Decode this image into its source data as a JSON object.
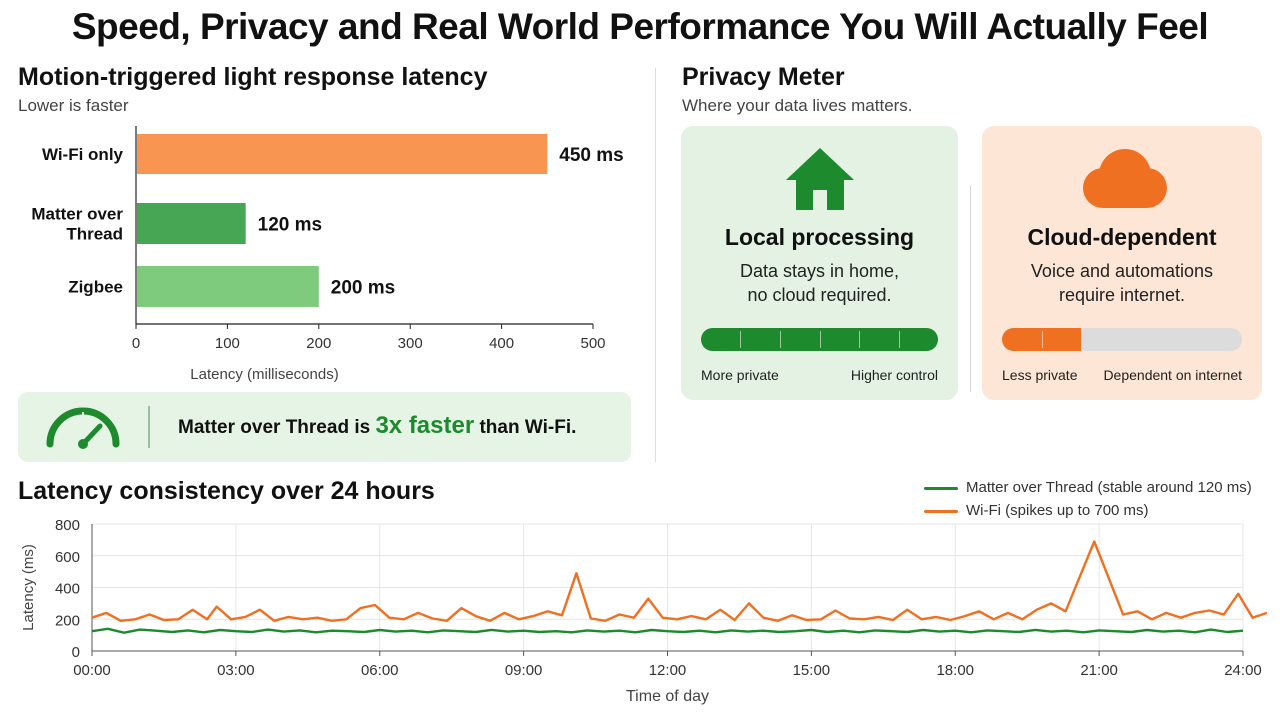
{
  "page": {
    "title": "Speed, Privacy and Real World Performance You Will Actually Feel"
  },
  "latency_section": {
    "title": "Motion-triggered light response latency",
    "subtitle": "Lower is faster"
  },
  "callout": {
    "prefix": "Matter over Thread is",
    "highlight": "3x faster",
    "suffix": "than Wi-Fi."
  },
  "privacy": {
    "title": "Privacy Meter",
    "subtitle": "Where your data lives matters.",
    "local": {
      "title": "Local processing",
      "line1": "Data stays in home,",
      "line2": "no cloud required.",
      "label_left": "More private",
      "label_right": "Higher control",
      "level": 1.0,
      "color": "#1e8a2e",
      "icon": "house-icon"
    },
    "cloud": {
      "title": "Cloud-dependent",
      "line1": "Voice and automations",
      "line2": "require internet.",
      "label_left": "Less private",
      "label_right": "Dependent on internet",
      "level": 0.33,
      "color": "#f07022",
      "icon": "cloud-icon"
    }
  },
  "consistency": {
    "title": "Latency consistency over 24 hours"
  },
  "chart_data": [
    {
      "type": "bar",
      "orientation": "horizontal",
      "categories": [
        "Wi-Fi only",
        "Matter over Thread",
        "Zigbee"
      ],
      "values": [
        450,
        120,
        200
      ],
      "value_labels": [
        "450 ms",
        "120 ms",
        "200 ms"
      ],
      "colors": [
        "#f89550",
        "#46a653",
        "#7ecb7e"
      ],
      "xlabel": "Latency (milliseconds)",
      "xlim": [
        0,
        500
      ],
      "xticks": [
        "0",
        "100",
        "200",
        "300",
        "400",
        "500"
      ],
      "grid": false
    },
    {
      "type": "line",
      "xlabel": "Time of day",
      "ylabel": "Latency (ms)",
      "ylim": [
        0,
        800
      ],
      "yticks": [
        "0",
        "200",
        "400",
        "600",
        "800"
      ],
      "xticks": [
        "00:00",
        "03:00",
        "06:00",
        "09:00",
        "12:00",
        "15:00",
        "18:00",
        "21:00",
        "24:00"
      ],
      "xlim": [
        0,
        24
      ],
      "grid": true,
      "legend": "top-right",
      "series": [
        {
          "name": "Matter over Thread (stable around 120 ms)",
          "color": "#1e8a2e",
          "points": [
            [
              0.0,
              125
            ],
            [
              0.33,
              140
            ],
            [
              0.67,
              115
            ],
            [
              1.0,
              135
            ],
            [
              1.33,
              128
            ],
            [
              1.67,
              120
            ],
            [
              2.0,
              130
            ],
            [
              2.33,
              118
            ],
            [
              2.67,
              132
            ],
            [
              3.0,
              125
            ],
            [
              3.33,
              120
            ],
            [
              3.67,
              135
            ],
            [
              4.0,
              122
            ],
            [
              4.33,
              130
            ],
            [
              4.67,
              118
            ],
            [
              5.0,
              128
            ],
            [
              5.33,
              125
            ],
            [
              5.67,
              120
            ],
            [
              6.0,
              132
            ],
            [
              6.33,
              122
            ],
            [
              6.67,
              128
            ],
            [
              7.0,
              118
            ],
            [
              7.33,
              130
            ],
            [
              7.67,
              125
            ],
            [
              8.0,
              120
            ],
            [
              8.33,
              133
            ],
            [
              8.67,
              122
            ],
            [
              9.0,
              128
            ],
            [
              9.33,
              120
            ],
            [
              9.67,
              125
            ],
            [
              10.0,
              118
            ],
            [
              10.33,
              130
            ],
            [
              10.67,
              122
            ],
            [
              11.0,
              128
            ],
            [
              11.33,
              118
            ],
            [
              11.67,
              132
            ],
            [
              12.0,
              125
            ],
            [
              12.33,
              120
            ],
            [
              12.67,
              128
            ],
            [
              13.0,
              118
            ],
            [
              13.33,
              130
            ],
            [
              13.67,
              122
            ],
            [
              14.0,
              128
            ],
            [
              14.33,
              120
            ],
            [
              14.67,
              125
            ],
            [
              15.0,
              132
            ],
            [
              15.33,
              120
            ],
            [
              15.67,
              128
            ],
            [
              16.0,
              118
            ],
            [
              16.33,
              130
            ],
            [
              16.67,
              125
            ],
            [
              17.0,
              120
            ],
            [
              17.33,
              132
            ],
            [
              17.67,
              122
            ],
            [
              18.0,
              128
            ],
            [
              18.33,
              118
            ],
            [
              18.67,
              130
            ],
            [
              19.0,
              125
            ],
            [
              19.33,
              120
            ],
            [
              19.67,
              133
            ],
            [
              20.0,
              122
            ],
            [
              20.33,
              128
            ],
            [
              20.67,
              118
            ],
            [
              21.0,
              130
            ],
            [
              21.33,
              125
            ],
            [
              21.67,
              120
            ],
            [
              22.0,
              132
            ],
            [
              22.33,
              122
            ],
            [
              22.67,
              128
            ],
            [
              23.0,
              118
            ],
            [
              23.33,
              135
            ],
            [
              23.67,
              120
            ],
            [
              24.0,
              128
            ]
          ]
        },
        {
          "name": "Wi-Fi (spikes up to 700 ms)",
          "color": "#f07022",
          "points": [
            [
              0.0,
              210
            ],
            [
              0.3,
              240
            ],
            [
              0.6,
              190
            ],
            [
              0.9,
              200
            ],
            [
              1.2,
              230
            ],
            [
              1.5,
              195
            ],
            [
              1.8,
              200
            ],
            [
              2.1,
              260
            ],
            [
              2.4,
              200
            ],
            [
              2.6,
              280
            ],
            [
              2.9,
              200
            ],
            [
              3.2,
              215
            ],
            [
              3.5,
              260
            ],
            [
              3.8,
              190
            ],
            [
              4.1,
              215
            ],
            [
              4.4,
              200
            ],
            [
              4.7,
              210
            ],
            [
              5.0,
              190
            ],
            [
              5.3,
              200
            ],
            [
              5.6,
              270
            ],
            [
              5.9,
              290
            ],
            [
              6.2,
              210
            ],
            [
              6.5,
              200
            ],
            [
              6.8,
              240
            ],
            [
              7.1,
              205
            ],
            [
              7.4,
              190
            ],
            [
              7.7,
              270
            ],
            [
              8.0,
              220
            ],
            [
              8.3,
              190
            ],
            [
              8.6,
              240
            ],
            [
              8.9,
              200
            ],
            [
              9.2,
              220
            ],
            [
              9.5,
              250
            ],
            [
              9.8,
              225
            ],
            [
              10.1,
              490
            ],
            [
              10.4,
              205
            ],
            [
              10.7,
              190
            ],
            [
              11.0,
              230
            ],
            [
              11.3,
              210
            ],
            [
              11.6,
              330
            ],
            [
              11.9,
              210
            ],
            [
              12.2,
              200
            ],
            [
              12.5,
              220
            ],
            [
              12.8,
              200
            ],
            [
              13.1,
              260
            ],
            [
              13.4,
              195
            ],
            [
              13.7,
              300
            ],
            [
              14.0,
              210
            ],
            [
              14.3,
              190
            ],
            [
              14.6,
              225
            ],
            [
              14.9,
              195
            ],
            [
              15.2,
              200
            ],
            [
              15.5,
              255
            ],
            [
              15.8,
              205
            ],
            [
              16.1,
              200
            ],
            [
              16.4,
              215
            ],
            [
              16.7,
              195
            ],
            [
              17.0,
              260
            ],
            [
              17.3,
              200
            ],
            [
              17.6,
              215
            ],
            [
              17.9,
              195
            ],
            [
              18.2,
              220
            ],
            [
              18.5,
              250
            ],
            [
              18.8,
              200
            ],
            [
              19.1,
              240
            ],
            [
              19.4,
              200
            ],
            [
              19.7,
              260
            ],
            [
              20.0,
              300
            ],
            [
              20.3,
              250
            ],
            [
              20.6,
              470
            ],
            [
              20.9,
              690
            ],
            [
              21.2,
              460
            ],
            [
              21.5,
              230
            ],
            [
              21.8,
              250
            ],
            [
              22.1,
              200
            ],
            [
              22.4,
              240
            ],
            [
              22.7,
              210
            ],
            [
              23.0,
              240
            ],
            [
              23.3,
              255
            ],
            [
              23.6,
              230
            ],
            [
              23.9,
              360
            ],
            [
              24.2,
              210
            ],
            [
              24.5,
              240
            ]
          ]
        }
      ]
    }
  ]
}
